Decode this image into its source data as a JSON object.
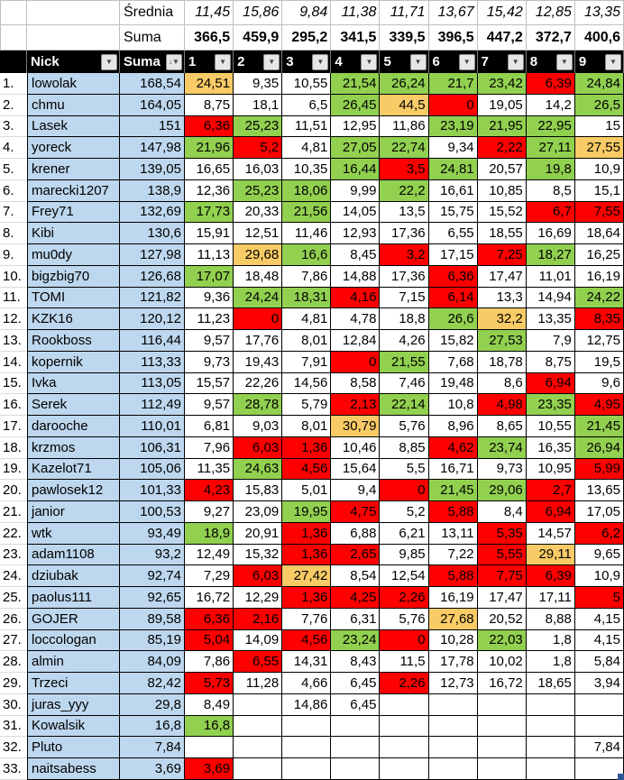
{
  "colors": {
    "blue": "#BDD7EE",
    "green": "#92D050",
    "red": "#FF0000",
    "orange": "#F8CB66",
    "header_bg": "#000000",
    "header_text": "#FFFFFF",
    "grid_dark": "#000000",
    "grid_light": "#BFBFBF",
    "handle": "#2F5597"
  },
  "summary": {
    "average_label": "Średnia",
    "sum_label": "Suma",
    "averages": [
      "11,45",
      "15,86",
      "9,84",
      "11,38",
      "11,71",
      "13,67",
      "15,42",
      "12,85",
      "13,35"
    ],
    "sums": [
      "366,5",
      "459,9",
      "295,2",
      "341,5",
      "339,5",
      "396,5",
      "447,2",
      "372,7",
      "400,6"
    ]
  },
  "header": {
    "nick_label": "Nick",
    "suma_label": "Suma",
    "rounds": [
      "1",
      "2",
      "3",
      "4",
      "5",
      "6",
      "7",
      "8",
      "9"
    ],
    "filter_icon": "▼",
    "sort_desc_icon": "↓"
  },
  "rows": [
    {
      "rank": "1.",
      "nick": "lowolak",
      "suma": "168,54",
      "cells": [
        [
          "24,51",
          "o"
        ],
        [
          "9,35",
          ""
        ],
        [
          "10,55",
          ""
        ],
        [
          "21,54",
          "g"
        ],
        [
          "26,24",
          "g"
        ],
        [
          "21,7",
          "g"
        ],
        [
          "23,42",
          "g"
        ],
        [
          "6,39",
          "r"
        ],
        [
          "24,84",
          "g"
        ]
      ]
    },
    {
      "rank": "2.",
      "nick": "chmu",
      "suma": "164,05",
      "cells": [
        [
          "8,75",
          ""
        ],
        [
          "18,1",
          ""
        ],
        [
          "6,5",
          ""
        ],
        [
          "26,45",
          "g"
        ],
        [
          "44,5",
          "o"
        ],
        [
          "0",
          "r"
        ],
        [
          "19,05",
          ""
        ],
        [
          "14,2",
          ""
        ],
        [
          "26,5",
          "g"
        ]
      ]
    },
    {
      "rank": "3.",
      "nick": "Lasek",
      "suma": "151",
      "cells": [
        [
          "6,36",
          "r"
        ],
        [
          "25,23",
          "g"
        ],
        [
          "11,51",
          ""
        ],
        [
          "12,95",
          ""
        ],
        [
          "11,86",
          ""
        ],
        [
          "23,19",
          "g"
        ],
        [
          "21,95",
          "g"
        ],
        [
          "22,95",
          "g"
        ],
        [
          "15",
          ""
        ]
      ]
    },
    {
      "rank": "4.",
      "nick": "yoreck",
      "suma": "147,98",
      "cells": [
        [
          "21,96",
          "g"
        ],
        [
          "5,2",
          "r"
        ],
        [
          "4,81",
          ""
        ],
        [
          "27,05",
          "g"
        ],
        [
          "22,74",
          "g"
        ],
        [
          "9,34",
          ""
        ],
        [
          "2,22",
          "r"
        ],
        [
          "27,11",
          "g"
        ],
        [
          "27,55",
          "o"
        ]
      ]
    },
    {
      "rank": "5.",
      "nick": "krener",
      "suma": "139,05",
      "cells": [
        [
          "16,65",
          ""
        ],
        [
          "16,03",
          ""
        ],
        [
          "10,35",
          ""
        ],
        [
          "16,44",
          "g"
        ],
        [
          "3,5",
          "r"
        ],
        [
          "24,81",
          "g"
        ],
        [
          "20,57",
          ""
        ],
        [
          "19,8",
          "g"
        ],
        [
          "10,9",
          ""
        ]
      ]
    },
    {
      "rank": "6.",
      "nick": "marecki1207",
      "suma": "138,9",
      "cells": [
        [
          "12,36",
          ""
        ],
        [
          "25,23",
          "g"
        ],
        [
          "18,06",
          "g"
        ],
        [
          "9,99",
          ""
        ],
        [
          "22,2",
          "g"
        ],
        [
          "16,61",
          ""
        ],
        [
          "10,85",
          ""
        ],
        [
          "8,5",
          ""
        ],
        [
          "15,1",
          ""
        ]
      ]
    },
    {
      "rank": "7.",
      "nick": "Frey71",
      "suma": "132,69",
      "cells": [
        [
          "17,73",
          "g"
        ],
        [
          "20,33",
          ""
        ],
        [
          "21,56",
          "g"
        ],
        [
          "14,05",
          ""
        ],
        [
          "13,5",
          ""
        ],
        [
          "15,75",
          ""
        ],
        [
          "15,52",
          ""
        ],
        [
          "6,7",
          "r"
        ],
        [
          "7,55",
          "r"
        ]
      ]
    },
    {
      "rank": "8.",
      "nick": "Kibi",
      "suma": "130,6",
      "cells": [
        [
          "15,91",
          ""
        ],
        [
          "12,51",
          ""
        ],
        [
          "11,46",
          ""
        ],
        [
          "12,93",
          ""
        ],
        [
          "17,36",
          ""
        ],
        [
          "6,55",
          ""
        ],
        [
          "18,55",
          ""
        ],
        [
          "16,69",
          ""
        ],
        [
          "18,64",
          ""
        ]
      ]
    },
    {
      "rank": "9.",
      "nick": "mu0dy",
      "suma": "127,98",
      "cells": [
        [
          "11,13",
          ""
        ],
        [
          "29,68",
          "o"
        ],
        [
          "16,6",
          "g"
        ],
        [
          "8,45",
          ""
        ],
        [
          "3,2",
          "r"
        ],
        [
          "17,15",
          ""
        ],
        [
          "7,25",
          "r"
        ],
        [
          "18,27",
          "g"
        ],
        [
          "16,25",
          ""
        ]
      ]
    },
    {
      "rank": "10.",
      "nick": "bigzbig70",
      "suma": "126,68",
      "cells": [
        [
          "17,07",
          "g"
        ],
        [
          "18,48",
          ""
        ],
        [
          "7,86",
          ""
        ],
        [
          "14,88",
          ""
        ],
        [
          "17,36",
          ""
        ],
        [
          "6,36",
          "r"
        ],
        [
          "17,47",
          ""
        ],
        [
          "11,01",
          ""
        ],
        [
          "16,19",
          ""
        ]
      ]
    },
    {
      "rank": "11.",
      "nick": "TOMI",
      "suma": "121,82",
      "cells": [
        [
          "9,36",
          ""
        ],
        [
          "24,24",
          "g"
        ],
        [
          "18,31",
          "g"
        ],
        [
          "4,16",
          "r"
        ],
        [
          "7,15",
          ""
        ],
        [
          "6,14",
          "r"
        ],
        [
          "13,3",
          ""
        ],
        [
          "14,94",
          ""
        ],
        [
          "24,22",
          "g"
        ]
      ]
    },
    {
      "rank": "12.",
      "nick": "KZK16",
      "suma": "120,12",
      "cells": [
        [
          "11,23",
          ""
        ],
        [
          "0",
          "r"
        ],
        [
          "4,81",
          ""
        ],
        [
          "4,78",
          ""
        ],
        [
          "18,8",
          ""
        ],
        [
          "26,6",
          "g"
        ],
        [
          "32,2",
          "o"
        ],
        [
          "13,35",
          ""
        ],
        [
          "8,35",
          "r"
        ]
      ]
    },
    {
      "rank": "13.",
      "nick": "Rookboss",
      "suma": "116,44",
      "cells": [
        [
          "9,57",
          ""
        ],
        [
          "17,76",
          ""
        ],
        [
          "8,01",
          ""
        ],
        [
          "12,84",
          ""
        ],
        [
          "4,26",
          ""
        ],
        [
          "15,82",
          ""
        ],
        [
          "27,53",
          "g"
        ],
        [
          "7,9",
          ""
        ],
        [
          "12,75",
          ""
        ]
      ]
    },
    {
      "rank": "14.",
      "nick": "kopernik",
      "suma": "113,33",
      "cells": [
        [
          "9,73",
          ""
        ],
        [
          "19,43",
          ""
        ],
        [
          "7,91",
          ""
        ],
        [
          "0",
          "r"
        ],
        [
          "21,55",
          "g"
        ],
        [
          "7,68",
          ""
        ],
        [
          "18,78",
          ""
        ],
        [
          "8,75",
          ""
        ],
        [
          "19,5",
          ""
        ]
      ]
    },
    {
      "rank": "15.",
      "nick": "Ivka",
      "suma": "113,05",
      "cells": [
        [
          "15,57",
          ""
        ],
        [
          "22,26",
          ""
        ],
        [
          "14,56",
          ""
        ],
        [
          "8,58",
          ""
        ],
        [
          "7,46",
          ""
        ],
        [
          "19,48",
          ""
        ],
        [
          "8,6",
          ""
        ],
        [
          "6,94",
          "r"
        ],
        [
          "9,6",
          ""
        ]
      ]
    },
    {
      "rank": "16.",
      "nick": "Serek",
      "suma": "112,49",
      "cells": [
        [
          "9,57",
          ""
        ],
        [
          "28,78",
          "g"
        ],
        [
          "5,79",
          ""
        ],
        [
          "2,13",
          "r"
        ],
        [
          "22,14",
          "g"
        ],
        [
          "10,8",
          ""
        ],
        [
          "4,98",
          "r"
        ],
        [
          "23,35",
          "g"
        ],
        [
          "4,95",
          "r"
        ]
      ]
    },
    {
      "rank": "17.",
      "nick": "darooche",
      "suma": "110,01",
      "cells": [
        [
          "6,81",
          ""
        ],
        [
          "9,03",
          ""
        ],
        [
          "8,01",
          ""
        ],
        [
          "30,79",
          "o"
        ],
        [
          "5,76",
          ""
        ],
        [
          "8,96",
          ""
        ],
        [
          "8,65",
          ""
        ],
        [
          "10,55",
          ""
        ],
        [
          "21,45",
          "g"
        ]
      ]
    },
    {
      "rank": "18.",
      "nick": "krzmos",
      "suma": "106,31",
      "cells": [
        [
          "7,96",
          ""
        ],
        [
          "6,03",
          "r"
        ],
        [
          "1,36",
          "r"
        ],
        [
          "10,46",
          ""
        ],
        [
          "8,85",
          ""
        ],
        [
          "4,62",
          "r"
        ],
        [
          "23,74",
          "g"
        ],
        [
          "16,35",
          ""
        ],
        [
          "26,94",
          "g"
        ]
      ]
    },
    {
      "rank": "19.",
      "nick": "Kazelot71",
      "suma": "105,06",
      "cells": [
        [
          "11,35",
          ""
        ],
        [
          "24,63",
          "g"
        ],
        [
          "4,56",
          "r"
        ],
        [
          "15,64",
          ""
        ],
        [
          "5,5",
          ""
        ],
        [
          "16,71",
          ""
        ],
        [
          "9,73",
          ""
        ],
        [
          "10,95",
          ""
        ],
        [
          "5,99",
          "r"
        ]
      ]
    },
    {
      "rank": "20.",
      "nick": "pawlosek12",
      "suma": "101,33",
      "cells": [
        [
          "4,23",
          "r"
        ],
        [
          "15,83",
          ""
        ],
        [
          "5,01",
          ""
        ],
        [
          "9,4",
          ""
        ],
        [
          "0",
          "r"
        ],
        [
          "21,45",
          "g"
        ],
        [
          "29,06",
          "g"
        ],
        [
          "2,7",
          "r"
        ],
        [
          "13,65",
          ""
        ]
      ]
    },
    {
      "rank": "21.",
      "nick": "janior",
      "suma": "100,53",
      "cells": [
        [
          "9,27",
          ""
        ],
        [
          "23,09",
          ""
        ],
        [
          "19,95",
          "g"
        ],
        [
          "4,75",
          "r"
        ],
        [
          "5,2",
          ""
        ],
        [
          "5,88",
          "r"
        ],
        [
          "8,4",
          ""
        ],
        [
          "6,94",
          "r"
        ],
        [
          "17,05",
          ""
        ]
      ]
    },
    {
      "rank": "22.",
      "nick": "wtk",
      "suma": "93,49",
      "cells": [
        [
          "18,9",
          "g"
        ],
        [
          "20,91",
          ""
        ],
        [
          "1,36",
          "r"
        ],
        [
          "6,88",
          ""
        ],
        [
          "6,21",
          ""
        ],
        [
          "13,11",
          ""
        ],
        [
          "5,35",
          "r"
        ],
        [
          "14,57",
          ""
        ],
        [
          "6,2",
          "r"
        ]
      ]
    },
    {
      "rank": "23.",
      "nick": "adam1108",
      "suma": "93,2",
      "cells": [
        [
          "12,49",
          ""
        ],
        [
          "15,32",
          ""
        ],
        [
          "1,36",
          "r"
        ],
        [
          "2,65",
          "r"
        ],
        [
          "9,85",
          ""
        ],
        [
          "7,22",
          ""
        ],
        [
          "5,55",
          "r"
        ],
        [
          "29,11",
          "o"
        ],
        [
          "9,65",
          ""
        ]
      ]
    },
    {
      "rank": "24.",
      "nick": "dziubak",
      "suma": "92,74",
      "cells": [
        [
          "7,29",
          ""
        ],
        [
          "6,03",
          "r"
        ],
        [
          "27,42",
          "o"
        ],
        [
          "8,54",
          ""
        ],
        [
          "12,54",
          ""
        ],
        [
          "5,88",
          "r"
        ],
        [
          "7,75",
          "r"
        ],
        [
          "6,39",
          "r"
        ],
        [
          "10,9",
          ""
        ]
      ]
    },
    {
      "rank": "25.",
      "nick": "paolus111",
      "suma": "92,65",
      "cells": [
        [
          "16,72",
          ""
        ],
        [
          "12,29",
          ""
        ],
        [
          "1,36",
          "r"
        ],
        [
          "4,25",
          "r"
        ],
        [
          "2,26",
          "r"
        ],
        [
          "16,19",
          ""
        ],
        [
          "17,47",
          ""
        ],
        [
          "17,11",
          ""
        ],
        [
          "5",
          "r"
        ]
      ]
    },
    {
      "rank": "26.",
      "nick": "GOJER",
      "suma": "89,58",
      "cells": [
        [
          "6,36",
          "r"
        ],
        [
          "2,16",
          "r"
        ],
        [
          "7,76",
          ""
        ],
        [
          "6,31",
          ""
        ],
        [
          "5,76",
          ""
        ],
        [
          "27,68",
          "o"
        ],
        [
          "20,52",
          ""
        ],
        [
          "8,88",
          ""
        ],
        [
          "4,15",
          ""
        ]
      ]
    },
    {
      "rank": "27.",
      "nick": "loccologan",
      "suma": "85,19",
      "cells": [
        [
          "5,04",
          "r"
        ],
        [
          "14,09",
          ""
        ],
        [
          "4,56",
          "r"
        ],
        [
          "23,24",
          "g"
        ],
        [
          "0",
          "r"
        ],
        [
          "10,28",
          ""
        ],
        [
          "22,03",
          "g"
        ],
        [
          "1,8",
          ""
        ],
        [
          "4,15",
          ""
        ]
      ]
    },
    {
      "rank": "28.",
      "nick": "almin",
      "suma": "84,09",
      "cells": [
        [
          "7,86",
          ""
        ],
        [
          "6,55",
          "r"
        ],
        [
          "14,31",
          ""
        ],
        [
          "8,43",
          ""
        ],
        [
          "11,5",
          ""
        ],
        [
          "17,78",
          ""
        ],
        [
          "10,02",
          ""
        ],
        [
          "1,8",
          ""
        ],
        [
          "5,84",
          ""
        ]
      ]
    },
    {
      "rank": "29.",
      "nick": "Trzeci",
      "suma": "82,42",
      "cells": [
        [
          "5,73",
          "r"
        ],
        [
          "11,28",
          ""
        ],
        [
          "4,66",
          ""
        ],
        [
          "6,45",
          ""
        ],
        [
          "2,26",
          "r"
        ],
        [
          "12,73",
          ""
        ],
        [
          "16,72",
          ""
        ],
        [
          "18,65",
          ""
        ],
        [
          "3,94",
          ""
        ]
      ]
    },
    {
      "rank": "30.",
      "nick": "juras_yyy",
      "suma": "29,8",
      "cells": [
        [
          "8,49",
          ""
        ],
        [
          "",
          ""
        ],
        [
          "14,86",
          ""
        ],
        [
          "6,45",
          ""
        ],
        [
          "",
          ""
        ],
        [
          "",
          ""
        ],
        [
          "",
          ""
        ],
        [
          "",
          ""
        ],
        [
          "",
          ""
        ]
      ]
    },
    {
      "rank": "31.",
      "nick": "Kowalsik",
      "suma": "16,8",
      "cells": [
        [
          "16,8",
          "g"
        ],
        [
          "",
          ""
        ],
        [
          "",
          ""
        ],
        [
          "",
          ""
        ],
        [
          "",
          ""
        ],
        [
          "",
          ""
        ],
        [
          "",
          ""
        ],
        [
          "",
          ""
        ],
        [
          "",
          ""
        ]
      ]
    },
    {
      "rank": "32.",
      "nick": "Pluto",
      "suma": "7,84",
      "cells": [
        [
          "",
          ""
        ],
        [
          "",
          ""
        ],
        [
          "",
          ""
        ],
        [
          "",
          ""
        ],
        [
          "",
          ""
        ],
        [
          "",
          ""
        ],
        [
          "",
          ""
        ],
        [
          "",
          ""
        ],
        [
          "7,84",
          ""
        ]
      ]
    },
    {
      "rank": "33.",
      "nick": "naitsabess",
      "suma": "3,69",
      "cells": [
        [
          "3,69",
          "r"
        ],
        [
          "",
          ""
        ],
        [
          "",
          ""
        ],
        [
          "",
          ""
        ],
        [
          "",
          ""
        ],
        [
          "",
          ""
        ],
        [
          "",
          ""
        ],
        [
          "",
          ""
        ],
        [
          "",
          ""
        ]
      ]
    }
  ]
}
